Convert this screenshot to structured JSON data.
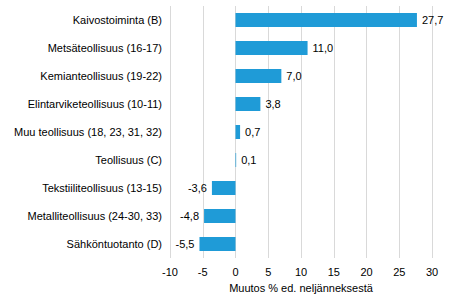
{
  "chart_data": {
    "type": "bar",
    "orientation": "horizontal",
    "categories": [
      "Kaivostoiminta (B)",
      "Metsäteollisuus (16-17)",
      "Kemianteollisuus (19-22)",
      "Elintarviketeollisuus (10-11)",
      "Muu teollisuus (18, 23, 31, 32)",
      "Teollisuus (C)",
      "Tekstiiliteollisuus (13-15)",
      "Metalliteollisuus (24-30, 33)",
      "Sähköntuotanto (D)"
    ],
    "values": [
      27.7,
      11.0,
      7.0,
      3.8,
      0.7,
      0.1,
      -3.6,
      -4.8,
      -5.5
    ],
    "value_labels": [
      "27,7",
      "11,0",
      "7,0",
      "3,8",
      "0,7",
      "0,1",
      "-3,6",
      "-4,8",
      "-5,5"
    ],
    "color": "#1f9bd7",
    "x_label": "Muutos % ed. neljänneksestä",
    "xlim": [
      -10,
      30
    ],
    "xticks": [
      -10,
      -5,
      0,
      5,
      10,
      15,
      20,
      25,
      30
    ],
    "grid": true,
    "data_labels": true
  }
}
